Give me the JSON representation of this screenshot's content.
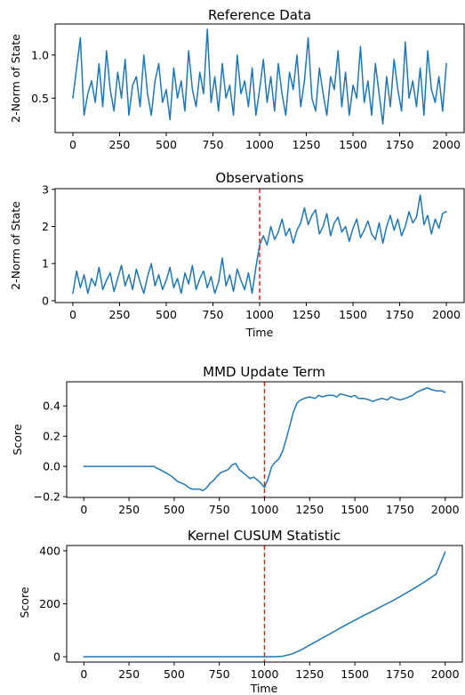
{
  "colors": {
    "series": "#1f77b4",
    "changepoint": "#e8231b",
    "axes": "#000000"
  },
  "chart_data": [
    {
      "type": "line",
      "title": "Reference Data",
      "xlabel": "",
      "ylabel": "2-Norm of State",
      "xlim": [
        -95,
        2095
      ],
      "ylim": [
        0.1,
        1.36
      ],
      "xticks": [
        0,
        250,
        500,
        750,
        1000,
        1250,
        1500,
        1750,
        2000
      ],
      "xtick_labels": [
        "0",
        "250",
        "500",
        "750",
        "1000",
        "1250",
        "1500",
        "1750",
        "2000"
      ],
      "yticks": [
        0.5,
        1.0
      ],
      "ytick_labels": [
        "0.5",
        "1.0"
      ],
      "changepoint": null,
      "series": [
        {
          "x": [
            0,
            20,
            40,
            60,
            80,
            100,
            120,
            140,
            160,
            180,
            200,
            220,
            240,
            260,
            280,
            300,
            320,
            340,
            360,
            380,
            400,
            420,
            440,
            460,
            480,
            500,
            520,
            540,
            560,
            580,
            600,
            620,
            640,
            660,
            680,
            700,
            720,
            740,
            760,
            780,
            800,
            820,
            840,
            860,
            880,
            900,
            920,
            940,
            960,
            980,
            1000,
            1020,
            1040,
            1060,
            1080,
            1100,
            1120,
            1140,
            1160,
            1180,
            1200,
            1220,
            1240,
            1260,
            1280,
            1300,
            1320,
            1340,
            1360,
            1380,
            1400,
            1420,
            1440,
            1460,
            1480,
            1500,
            1520,
            1540,
            1560,
            1580,
            1600,
            1620,
            1640,
            1660,
            1680,
            1700,
            1720,
            1740,
            1760,
            1780,
            1800,
            1820,
            1840,
            1860,
            1880,
            1900,
            1920,
            1940,
            1960,
            1980,
            2000
          ],
          "y": [
            0.5,
            0.85,
            1.2,
            0.3,
            0.55,
            0.7,
            0.45,
            0.9,
            0.4,
            1.05,
            0.6,
            0.35,
            0.8,
            0.5,
            0.95,
            0.3,
            0.65,
            0.75,
            0.4,
            1.0,
            0.55,
            0.3,
            0.7,
            0.9,
            0.45,
            0.6,
            0.25,
            0.85,
            0.5,
            0.7,
            0.35,
            1.05,
            0.6,
            0.4,
            0.8,
            0.55,
            1.3,
            0.45,
            0.75,
            0.35,
            0.9,
            0.5,
            0.65,
            0.3,
            1.0,
            0.55,
            0.7,
            0.4,
            0.85,
            0.3,
            0.6,
            0.95,
            0.45,
            0.75,
            0.35,
            0.9,
            0.55,
            0.3,
            0.8,
            0.6,
            1.0,
            0.4,
            0.7,
            1.2,
            0.5,
            0.35,
            0.85,
            0.55,
            0.3,
            0.75,
            0.6,
            1.05,
            0.4,
            0.8,
            0.3,
            0.65,
            0.5,
            1.1,
            0.45,
            0.7,
            0.3,
            0.9,
            0.55,
            0.2,
            0.75,
            0.4,
            0.95,
            0.6,
            0.35,
            1.15,
            0.5,
            0.7,
            0.4,
            0.85,
            0.3,
            1.05,
            0.6,
            0.45,
            0.75,
            0.35,
            0.9
          ]
        }
      ]
    },
    {
      "type": "line",
      "title": "Observations",
      "xlabel": "Time",
      "ylabel": "2-Norm of State",
      "xlim": [
        -95,
        2095
      ],
      "ylim": [
        -0.05,
        3.02
      ],
      "xticks": [
        0,
        250,
        500,
        750,
        1000,
        1250,
        1500,
        1750,
        2000
      ],
      "xtick_labels": [
        "0",
        "250",
        "500",
        "750",
        "1000",
        "1250",
        "1500",
        "1750",
        "2000"
      ],
      "yticks": [
        0,
        1,
        2,
        3
      ],
      "ytick_labels": [
        "0",
        "1",
        "2",
        "3"
      ],
      "changepoint": 1000,
      "series": [
        {
          "x": [
            0,
            20,
            40,
            60,
            80,
            100,
            120,
            140,
            160,
            180,
            200,
            220,
            240,
            260,
            280,
            300,
            320,
            340,
            360,
            380,
            400,
            420,
            440,
            460,
            480,
            500,
            520,
            540,
            560,
            580,
            600,
            620,
            640,
            660,
            680,
            700,
            720,
            740,
            760,
            780,
            800,
            820,
            840,
            860,
            880,
            900,
            920,
            940,
            960,
            980,
            1000,
            1020,
            1040,
            1060,
            1080,
            1100,
            1120,
            1140,
            1160,
            1180,
            1200,
            1220,
            1240,
            1260,
            1280,
            1300,
            1320,
            1340,
            1360,
            1380,
            1400,
            1420,
            1440,
            1460,
            1480,
            1500,
            1520,
            1540,
            1560,
            1580,
            1600,
            1620,
            1640,
            1660,
            1680,
            1700,
            1720,
            1740,
            1760,
            1780,
            1800,
            1820,
            1840,
            1860,
            1880,
            1900,
            1920,
            1940,
            1960,
            1980,
            2000
          ],
          "y": [
            0.2,
            0.8,
            0.35,
            0.7,
            0.2,
            0.6,
            0.4,
            0.9,
            0.3,
            0.55,
            0.75,
            0.25,
            0.6,
            0.95,
            0.4,
            0.7,
            0.3,
            0.85,
            0.5,
            0.2,
            0.65,
            1.0,
            0.4,
            0.7,
            0.3,
            0.55,
            0.9,
            0.35,
            0.6,
            0.2,
            0.75,
            0.45,
            0.95,
            0.3,
            0.6,
            0.8,
            0.35,
            0.65,
            0.2,
            0.5,
            1.15,
            0.4,
            0.7,
            0.25,
            0.85,
            0.55,
            0.3,
            0.75,
            0.2,
            0.9,
            1.5,
            1.75,
            1.5,
            2.0,
            1.65,
            1.85,
            2.2,
            1.75,
            1.95,
            1.55,
            1.9,
            2.1,
            2.5,
            2.05,
            2.3,
            2.45,
            1.8,
            2.0,
            2.35,
            1.75,
            2.1,
            2.25,
            1.85,
            2.0,
            1.6,
            1.95,
            2.2,
            1.7,
            1.9,
            2.15,
            1.8,
            1.65,
            2.1,
            1.55,
            2.0,
            2.3,
            1.9,
            2.2,
            1.75,
            2.0,
            2.4,
            2.1,
            2.25,
            2.85,
            2.05,
            2.3,
            1.8,
            2.2,
            1.95,
            2.35,
            2.4
          ]
        }
      ]
    },
    {
      "type": "line",
      "title": "MMD Update Term",
      "xlabel": "",
      "ylabel": "Score",
      "xlim": [
        -95,
        2095
      ],
      "ylim": [
        -0.205,
        0.56
      ],
      "xticks": [
        0,
        250,
        500,
        750,
        1000,
        1250,
        1500,
        1750,
        2000
      ],
      "xtick_labels": [
        "0",
        "250",
        "500",
        "750",
        "1000",
        "1250",
        "1500",
        "1750",
        "2000"
      ],
      "yticks": [
        -0.2,
        0.0,
        0.2,
        0.4
      ],
      "ytick_labels": [
        "−0.2",
        "0.0",
        "0.2",
        "0.4"
      ],
      "changepoint": 1000,
      "series": [
        {
          "x": [
            0,
            100,
            200,
            300,
            390,
            400,
            420,
            450,
            480,
            500,
            520,
            540,
            560,
            580,
            600,
            620,
            640,
            660,
            680,
            700,
            720,
            740,
            760,
            780,
            800,
            820,
            840,
            860,
            880,
            900,
            920,
            940,
            960,
            980,
            1000,
            1020,
            1040,
            1060,
            1080,
            1100,
            1120,
            1140,
            1160,
            1180,
            1200,
            1220,
            1250,
            1280,
            1300,
            1320,
            1350,
            1380,
            1400,
            1420,
            1450,
            1480,
            1500,
            1520,
            1550,
            1580,
            1600,
            1620,
            1650,
            1680,
            1700,
            1720,
            1750,
            1780,
            1800,
            1820,
            1840,
            1860,
            1880,
            1900,
            1920,
            1950,
            1980,
            2000
          ],
          "y": [
            0,
            0,
            0,
            0,
            0,
            -0.01,
            -0.02,
            -0.04,
            -0.06,
            -0.08,
            -0.1,
            -0.11,
            -0.12,
            -0.14,
            -0.15,
            -0.15,
            -0.15,
            -0.16,
            -0.14,
            -0.11,
            -0.09,
            -0.06,
            -0.04,
            -0.03,
            -0.02,
            0.01,
            0.02,
            -0.02,
            -0.04,
            -0.06,
            -0.08,
            -0.07,
            -0.09,
            -0.11,
            -0.14,
            -0.08,
            0.0,
            0.03,
            0.05,
            0.1,
            0.18,
            0.27,
            0.36,
            0.42,
            0.44,
            0.45,
            0.46,
            0.45,
            0.47,
            0.46,
            0.47,
            0.47,
            0.46,
            0.48,
            0.47,
            0.46,
            0.47,
            0.45,
            0.45,
            0.44,
            0.43,
            0.44,
            0.45,
            0.44,
            0.46,
            0.45,
            0.44,
            0.45,
            0.46,
            0.47,
            0.49,
            0.5,
            0.51,
            0.52,
            0.51,
            0.5,
            0.5,
            0.49
          ]
        }
      ]
    },
    {
      "type": "line",
      "title": "Kernel CUSUM Statistic",
      "xlabel": "Time",
      "ylabel": "Score",
      "xlim": [
        -95,
        2095
      ],
      "ylim": [
        -20,
        420
      ],
      "xticks": [
        0,
        250,
        500,
        750,
        1000,
        1250,
        1500,
        1750,
        2000
      ],
      "xtick_labels": [
        "0",
        "250",
        "500",
        "750",
        "1000",
        "1250",
        "1500",
        "1750",
        "2000"
      ],
      "yticks": [
        0,
        200,
        400
      ],
      "ytick_labels": [
        "0",
        "200",
        "400"
      ],
      "changepoint": 1000,
      "series": [
        {
          "x": [
            0,
            250,
            500,
            750,
            1000,
            1050,
            1100,
            1150,
            1200,
            1250,
            1300,
            1350,
            1400,
            1450,
            1500,
            1550,
            1600,
            1650,
            1700,
            1750,
            1800,
            1850,
            1900,
            1950,
            2000
          ],
          "y": [
            0,
            0,
            0,
            0,
            0,
            0,
            2,
            10,
            25,
            44,
            63,
            82,
            101,
            120,
            138,
            156,
            173,
            191,
            208,
            227,
            247,
            267,
            289,
            312,
            396
          ]
        }
      ]
    }
  ]
}
